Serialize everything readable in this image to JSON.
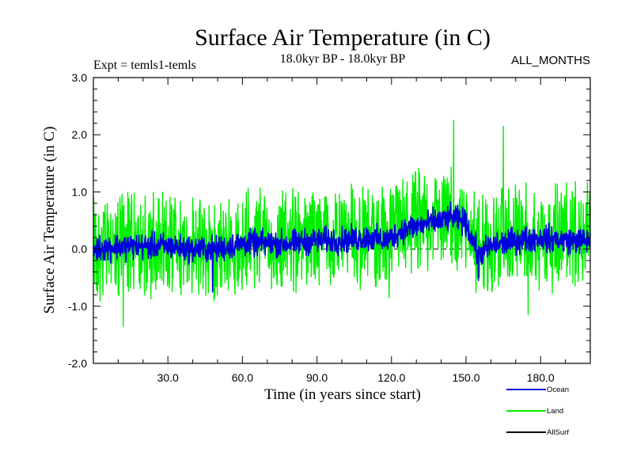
{
  "chart_data": {
    "type": "line",
    "title": "Surface Air Temperature (in C)",
    "subtitle_left": "Expt = temls1-temls",
    "subtitle_center": "18.0kyr BP - 18.0kyr BP",
    "subtitle_right": "ALL_MONTHS",
    "xlabel": "Time (in years since start)",
    "ylabel": "Surface Air Temperature (in C)",
    "xlim": [
      0,
      200
    ],
    "ylim": [
      -2.0,
      3.0
    ],
    "x_ticks": [
      30,
      60,
      90,
      120,
      150,
      180
    ],
    "x_tick_labels": [
      "30.0",
      "60.0",
      "90.0",
      "120.0",
      "150.0",
      "180.0"
    ],
    "y_ticks": [
      -2,
      -1,
      0,
      1,
      2,
      3
    ],
    "y_tick_labels": [
      "-2.0",
      "-1.0",
      "0.0",
      "1.0",
      "2.0",
      "3.0"
    ],
    "reference_line": 0.0,
    "legend_position": "bottom-right",
    "series": [
      {
        "name": "Land",
        "color": "#00ee00",
        "x": [
          0,
          10,
          20,
          30,
          40,
          50,
          60,
          70,
          80,
          90,
          100,
          110,
          118,
          125,
          135,
          145,
          150,
          155,
          160,
          170,
          180,
          190,
          200
        ],
        "mean": [
          0.0,
          0.05,
          0.05,
          0.05,
          0.0,
          0.0,
          0.1,
          0.15,
          0.15,
          0.2,
          0.2,
          0.25,
          0.2,
          0.45,
          0.5,
          0.6,
          0.5,
          0.05,
          0.05,
          0.2,
          0.2,
          0.25,
          0.2
        ],
        "amplitude": 0.55,
        "peaks": [
          {
            "x": 12,
            "y": -1.35
          },
          {
            "x": 145,
            "y": 2.25
          },
          {
            "x": 165,
            "y": 2.15
          },
          {
            "x": 175,
            "y": -1.15
          },
          {
            "x": 119,
            "y": -0.85
          }
        ]
      },
      {
        "name": "Ocean",
        "color": "#0000dd",
        "x": [
          0,
          10,
          20,
          30,
          40,
          50,
          60,
          70,
          80,
          90,
          100,
          110,
          118,
          125,
          135,
          145,
          150,
          155,
          160,
          170,
          180,
          190,
          200
        ],
        "mean": [
          0.0,
          0.05,
          0.05,
          0.05,
          0.0,
          0.0,
          0.1,
          0.1,
          0.1,
          0.15,
          0.15,
          0.2,
          0.15,
          0.35,
          0.45,
          0.55,
          0.45,
          -0.1,
          0.05,
          0.15,
          0.2,
          0.15,
          0.15
        ],
        "amplitude": 0.2,
        "peaks": [
          {
            "x": 48,
            "y": -0.75
          },
          {
            "x": 155,
            "y": -0.55
          }
        ]
      },
      {
        "name": "AllSurf",
        "color": "#000000",
        "x": [],
        "mean": [],
        "amplitude": 0,
        "peaks": []
      }
    ]
  }
}
